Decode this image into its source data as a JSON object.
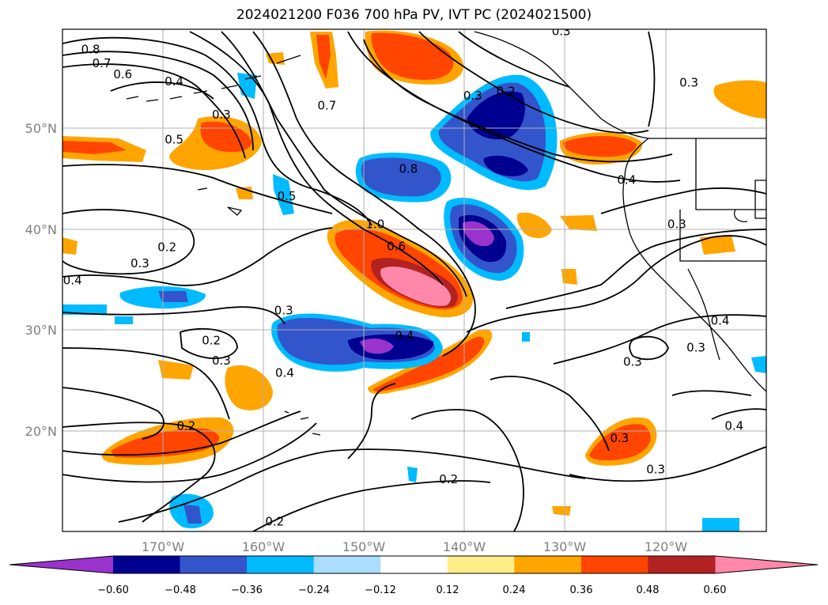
{
  "title": "2024021200 F036 700 hPa PV, IVT PC (2024021500)",
  "map": {
    "lat_labels": [
      "50°N",
      "40°N",
      "30°N",
      "20°N"
    ],
    "lon_labels": [
      "170°W",
      "160°W",
      "150°W",
      "140°W",
      "130°W",
      "120°W"
    ],
    "lat_values": [
      50,
      40,
      30,
      20
    ],
    "lon_values": [
      -170,
      -160,
      -150,
      -140,
      -130,
      -120
    ],
    "extent": {
      "lon_min": -180,
      "lon_max": -110,
      "lat_min": 10,
      "lat_max": 60
    },
    "contour_labels": [
      {
        "text": "0.8",
        "lon": -177.2,
        "lat": 58.0
      },
      {
        "text": "0.7",
        "lon": -176.1,
        "lat": 56.6
      },
      {
        "text": "0.6",
        "lon": -174.0,
        "lat": 55.5
      },
      {
        "text": "0.4",
        "lon": -168.9,
        "lat": 54.8
      },
      {
        "text": "0.3",
        "lon": -164.2,
        "lat": 51.5
      },
      {
        "text": "0.5",
        "lon": -168.9,
        "lat": 49.0
      },
      {
        "text": "0.7",
        "lon": -153.7,
        "lat": 52.4
      },
      {
        "text": "0.3",
        "lon": -139.2,
        "lat": 53.4
      },
      {
        "text": "0.2",
        "lon": -135.9,
        "lat": 53.8
      },
      {
        "text": "0.3",
        "lon": -130.4,
        "lat": 59.8
      },
      {
        "text": "0.8",
        "lon": -145.6,
        "lat": 46.1
      },
      {
        "text": "0.5",
        "lon": -157.7,
        "lat": 43.4
      },
      {
        "text": "1.0",
        "lon": -148.9,
        "lat": 40.6
      },
      {
        "text": "0.6",
        "lon": -146.8,
        "lat": 38.4
      },
      {
        "text": "0.4",
        "lon": -123.9,
        "lat": 45.0
      },
      {
        "text": "0.3",
        "lon": -117.7,
        "lat": 54.7
      },
      {
        "text": "0.3",
        "lon": -118.9,
        "lat": 40.6
      },
      {
        "text": "0.2",
        "lon": -169.6,
        "lat": 38.3
      },
      {
        "text": "0.3",
        "lon": -172.3,
        "lat": 36.7
      },
      {
        "text": "0.4",
        "lon": -179.0,
        "lat": 35.0
      },
      {
        "text": "0.3",
        "lon": -158.0,
        "lat": 32.0
      },
      {
        "text": "0.2",
        "lon": -165.2,
        "lat": 29.0
      },
      {
        "text": "0.3",
        "lon": -164.2,
        "lat": 27.0
      },
      {
        "text": "0.4",
        "lon": -157.9,
        "lat": 25.8
      },
      {
        "text": "0.4",
        "lon": -146.0,
        "lat": 29.5
      },
      {
        "text": "0.2",
        "lon": -167.7,
        "lat": 20.5
      },
      {
        "text": "0.2",
        "lon": -141.6,
        "lat": 15.2
      },
      {
        "text": "0.2",
        "lon": -158.9,
        "lat": 11.0
      },
      {
        "text": "0.3",
        "lon": -123.3,
        "lat": 26.9
      },
      {
        "text": "0.3",
        "lon": -117.0,
        "lat": 28.3
      },
      {
        "text": "0.4",
        "lon": -114.6,
        "lat": 31.0
      },
      {
        "text": "0.3",
        "lon": -124.6,
        "lat": 19.3
      },
      {
        "text": "0.3",
        "lon": -121.0,
        "lat": 16.2
      },
      {
        "text": "0.4",
        "lon": -113.2,
        "lat": 20.5
      }
    ]
  },
  "colorbar": {
    "tick_labels": [
      "−0.60",
      "−0.48",
      "−0.36",
      "−0.24",
      "−0.12",
      "0.12",
      "0.24",
      "0.36",
      "0.48",
      "0.60"
    ],
    "bounds": [
      -0.6,
      -0.48,
      -0.36,
      -0.24,
      -0.12,
      0.12,
      0.24,
      0.36,
      0.48,
      0.6
    ],
    "under_color": "#9933cc",
    "over_color": "#ff88aa",
    "colors": [
      "#000090",
      "#3355cc",
      "#00bbff",
      "#aaddff",
      "#ffffff",
      "#ffee88",
      "#ffa500",
      "#ff4500",
      "#b22222",
      "#ff88aa"
    ]
  }
}
